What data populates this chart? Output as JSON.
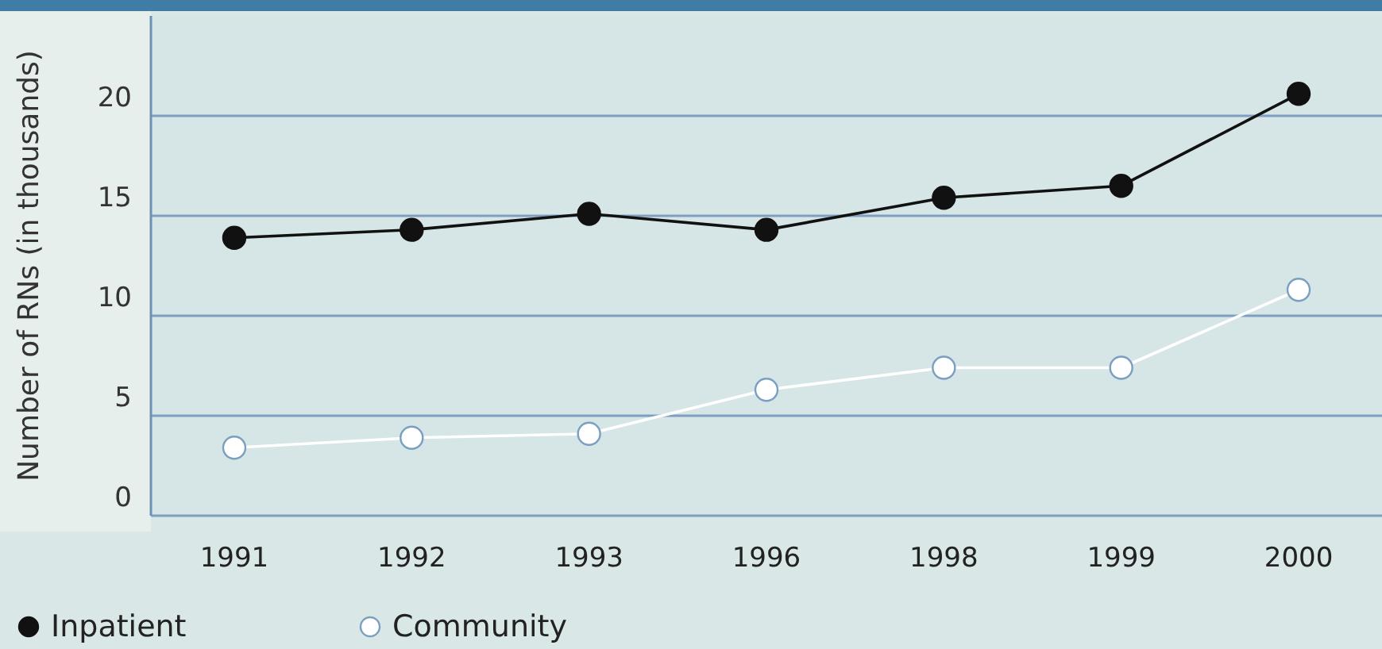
{
  "chart_data": {
    "type": "line",
    "ylabel": "Number of RNs (in thousands)",
    "categories": [
      "1991",
      "1992",
      "1993",
      "1996",
      "1998",
      "1999",
      "2000"
    ],
    "series": [
      {
        "name": "Inpatient",
        "color": "#111111",
        "values": [
          13.9,
          14.3,
          15.1,
          14.3,
          15.9,
          16.5,
          21.1
        ]
      },
      {
        "name": "Community",
        "color": "#ffffff",
        "values": [
          3.4,
          3.9,
          4.1,
          6.3,
          7.4,
          7.4,
          11.3
        ]
      }
    ],
    "ylim": [
      0,
      25
    ],
    "yticks": [
      0,
      5,
      10,
      15,
      20
    ],
    "grid": "y",
    "legend": "bottom left",
    "marker": "circle",
    "line_style": "solid"
  }
}
